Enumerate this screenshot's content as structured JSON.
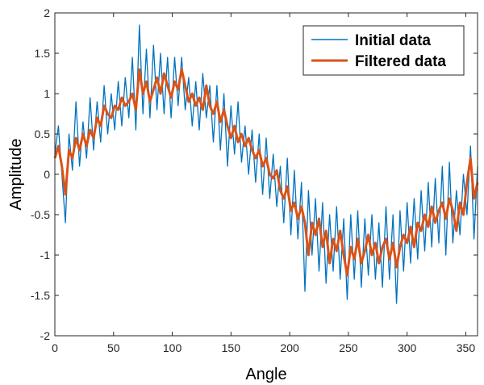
{
  "chart_data": {
    "type": "line",
    "title": "",
    "xlabel": "Angle",
    "ylabel": "Amplitude",
    "xlim": [
      0,
      360
    ],
    "ylim": [
      -2,
      2
    ],
    "xticks": [
      0,
      50,
      100,
      150,
      200,
      250,
      300,
      350
    ],
    "yticks": [
      -2,
      -1.5,
      -1,
      -0.5,
      0,
      0.5,
      1,
      1.5,
      2
    ],
    "ytick_labels": [
      "-2",
      "-1.5",
      "-1",
      "-0.5",
      "0",
      "0.5",
      "1",
      "1.5",
      "2"
    ],
    "grid": false,
    "legend_position": "top-right",
    "x_step": 3,
    "series": [
      {
        "name": "Initial data",
        "color": "#0072BD",
        "values": [
          0.25,
          0.6,
          0.0,
          -0.6,
          0.5,
          0.05,
          0.9,
          0.1,
          0.65,
          0.2,
          0.95,
          0.3,
          0.9,
          0.4,
          1.1,
          0.5,
          1.0,
          0.55,
          1.15,
          0.6,
          1.2,
          0.7,
          1.45,
          0.55,
          1.85,
          0.75,
          1.55,
          0.7,
          1.6,
          0.8,
          1.5,
          0.75,
          1.45,
          0.7,
          1.45,
          0.85,
          1.45,
          0.8,
          1.2,
          0.6,
          1.15,
          0.55,
          1.25,
          0.7,
          1.1,
          0.4,
          1.1,
          0.3,
          1.0,
          0.1,
          0.85,
          0.25,
          0.9,
          0.15,
          0.6,
          0.0,
          0.55,
          -0.1,
          0.5,
          -0.25,
          0.45,
          -0.3,
          0.25,
          -0.4,
          0.1,
          -0.6,
          0.2,
          -0.75,
          0.05,
          -0.8,
          -0.1,
          -1.45,
          -0.2,
          -1.0,
          -0.3,
          -1.2,
          -0.35,
          -1.35,
          -0.5,
          -1.2,
          -0.4,
          -1.3,
          -0.55,
          -1.55,
          -0.5,
          -1.3,
          -0.45,
          -1.4,
          -0.55,
          -1.25,
          -0.5,
          -1.3,
          -0.6,
          -1.4,
          -0.4,
          -1.3,
          -0.5,
          -1.6,
          -0.45,
          -1.2,
          -0.35,
          -1.1,
          -0.3,
          -1.05,
          -0.2,
          -0.95,
          -0.1,
          -0.9,
          -0.05,
          -0.85,
          0.1,
          -1.0,
          0.15,
          -0.85,
          -0.2,
          -0.75,
          0.0,
          -0.5,
          0.35,
          -0.8,
          0.1
        ]
      },
      {
        "name": "Filtered data",
        "color": "#D95319",
        "values": [
          0.2,
          0.35,
          0.1,
          -0.25,
          0.3,
          0.2,
          0.45,
          0.3,
          0.5,
          0.35,
          0.55,
          0.45,
          0.7,
          0.6,
          0.85,
          0.75,
          0.7,
          0.85,
          0.8,
          0.95,
          0.85,
          0.9,
          1.0,
          0.8,
          1.3,
          1.0,
          1.15,
          0.9,
          1.05,
          1.2,
          1.0,
          1.25,
          1.1,
          0.95,
          1.15,
          1.05,
          1.3,
          1.1,
          0.9,
          1.0,
          0.85,
          0.95,
          0.8,
          1.1,
          0.85,
          0.75,
          0.9,
          0.65,
          0.8,
          0.6,
          0.45,
          0.6,
          0.4,
          0.5,
          0.35,
          0.45,
          0.3,
          0.2,
          0.3,
          0.1,
          0.2,
          0.0,
          -0.05,
          0.05,
          -0.2,
          -0.3,
          -0.15,
          -0.45,
          -0.35,
          -0.55,
          -0.4,
          -0.6,
          -1.0,
          -0.6,
          -0.75,
          -0.55,
          -0.9,
          -0.7,
          -1.1,
          -0.8,
          -0.95,
          -0.7,
          -1.0,
          -1.25,
          -0.9,
          -1.05,
          -0.8,
          -1.1,
          -0.95,
          -0.75,
          -1.0,
          -0.85,
          -1.1,
          -0.9,
          -0.8,
          -1.05,
          -0.85,
          -1.15,
          -0.9,
          -0.75,
          -0.85,
          -0.65,
          -0.9,
          -0.6,
          -0.7,
          -0.5,
          -0.65,
          -0.4,
          -0.6,
          -0.45,
          -0.35,
          -0.55,
          -0.3,
          -0.45,
          -0.7,
          -0.35,
          -0.5,
          -0.1,
          0.2,
          -0.3,
          -0.1
        ]
      }
    ]
  }
}
